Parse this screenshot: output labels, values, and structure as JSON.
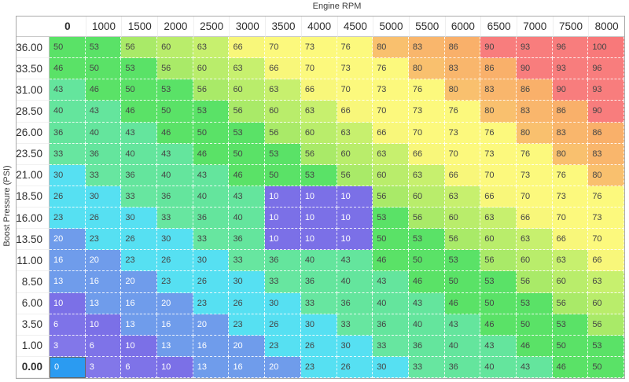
{
  "axes": {
    "x_title": "Engine RPM",
    "y_title": "Boost Pressure (PSI)"
  },
  "table": {
    "col_headers": [
      "0",
      "1000",
      "1500",
      "2000",
      "2500",
      "3000",
      "3500",
      "4000",
      "4500",
      "5000",
      "5500",
      "6000",
      "6500",
      "7000",
      "7500",
      "8000"
    ],
    "row_headers": [
      "36.00",
      "33.50",
      "31.00",
      "28.50",
      "26.00",
      "23.50",
      "21.00",
      "18.50",
      "16.00",
      "13.50",
      "11.00",
      "8.50",
      "6.00",
      "3.50",
      "1.00",
      "0.00"
    ],
    "rows": [
      [
        50,
        53,
        56,
        60,
        63,
        66,
        70,
        73,
        76,
        80,
        83,
        86,
        90,
        93,
        96,
        100
      ],
      [
        46,
        50,
        53,
        56,
        60,
        63,
        66,
        70,
        73,
        76,
        80,
        83,
        86,
        90,
        93,
        96
      ],
      [
        43,
        46,
        50,
        53,
        56,
        60,
        63,
        66,
        70,
        73,
        76,
        80,
        83,
        86,
        90,
        93
      ],
      [
        40,
        43,
        46,
        50,
        53,
        56,
        60,
        63,
        66,
        70,
        73,
        76,
        80,
        83,
        86,
        90
      ],
      [
        36,
        40,
        43,
        46,
        50,
        53,
        56,
        60,
        63,
        66,
        70,
        73,
        76,
        80,
        83,
        86
      ],
      [
        33,
        36,
        40,
        43,
        46,
        50,
        53,
        56,
        60,
        63,
        66,
        70,
        73,
        76,
        80,
        83
      ],
      [
        30,
        33,
        36,
        40,
        43,
        46,
        50,
        53,
        56,
        60,
        63,
        66,
        70,
        73,
        76,
        80
      ],
      [
        26,
        30,
        33,
        36,
        40,
        43,
        10,
        10,
        10,
        56,
        60,
        63,
        66,
        70,
        73,
        76
      ],
      [
        23,
        26,
        30,
        33,
        36,
        40,
        10,
        10,
        10,
        53,
        56,
        60,
        63,
        66,
        70,
        73
      ],
      [
        20,
        23,
        26,
        30,
        33,
        36,
        10,
        10,
        10,
        50,
        53,
        56,
        60,
        63,
        66,
        70
      ],
      [
        16,
        20,
        23,
        26,
        30,
        33,
        36,
        40,
        43,
        46,
        50,
        53,
        56,
        60,
        63,
        66
      ],
      [
        13,
        16,
        20,
        23,
        26,
        30,
        33,
        36,
        40,
        43,
        46,
        50,
        53,
        56,
        60,
        63
      ],
      [
        10,
        13,
        16,
        20,
        23,
        26,
        30,
        33,
        36,
        40,
        43,
        46,
        50,
        53,
        56,
        60
      ],
      [
        6,
        10,
        13,
        16,
        20,
        23,
        26,
        30,
        33,
        36,
        40,
        43,
        46,
        50,
        53,
        56
      ],
      [
        3,
        6,
        10,
        13,
        16,
        20,
        23,
        26,
        30,
        33,
        36,
        40,
        43,
        46,
        50,
        53
      ],
      [
        0,
        3,
        6,
        10,
        13,
        16,
        20,
        23,
        26,
        30,
        33,
        36,
        40,
        43,
        46,
        50
      ]
    ],
    "selected_cell": {
      "row": 15,
      "col": 0,
      "value": 0
    }
  },
  "colors": {
    "cell_value_map": {
      "0": "#7b70e7",
      "3": "#8277e9",
      "6": "#7e73e8",
      "10": "#7b70e7",
      "13": "#6f9ceb",
      "16": "#6f9ceb",
      "20": "#6f9ceb",
      "23": "#56e0f2",
      "26": "#56e0f2",
      "30": "#56e0f2",
      "33": "#67e6a0",
      "36": "#64e59d",
      "40": "#64e59d",
      "43": "#64e59d",
      "46": "#5ae267",
      "50": "#5ae267",
      "53": "#5ae267",
      "56": "#a9ea68",
      "60": "#b9ed6b",
      "63": "#c7f06e",
      "66": "#f8f77a",
      "70": "#fcf97d",
      "73": "#fcf97d",
      "76": "#fcf97d",
      "80": "#f9c06e",
      "83": "#f9b66c",
      "86": "#f9b06a",
      "90": "#f87d7d",
      "93": "#f87d7d",
      "96": "#f87d7d",
      "100": "#f8797a"
    },
    "selected_bg": "#2b9bf1",
    "selected_border": "#666666",
    "text_dark": "#454545",
    "text_light": "#ffffff",
    "light_text_max_value": 20
  }
}
